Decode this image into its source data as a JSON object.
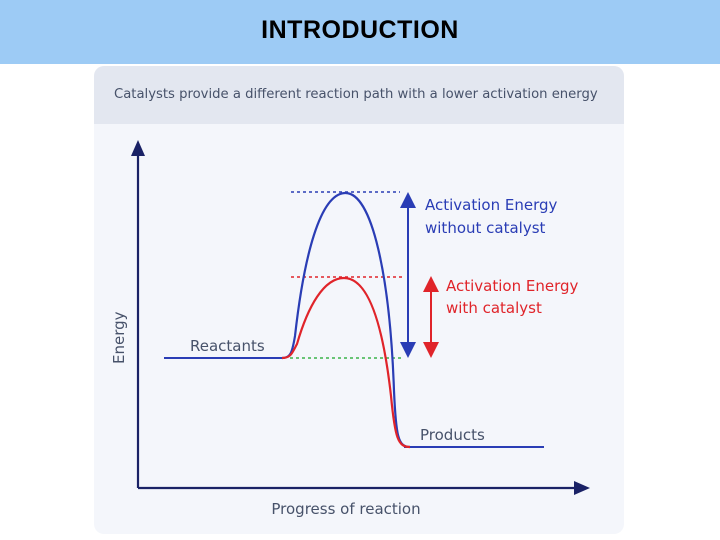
{
  "slide": {
    "title": "INTRODUCTION"
  },
  "figure": {
    "caption": "Catalysts provide a different reaction path with a lower activation energy",
    "y_axis_label": "Energy",
    "x_axis_label": "Progress of reaction",
    "reactants_label": "Reactants",
    "products_label": "Products",
    "uncatalysed": {
      "line1": "Activation Energy",
      "line2": "without catalyst",
      "color": "#2a3db5"
    },
    "catalysed": {
      "line1": "Activation Energy",
      "line2": "with catalyst",
      "color": "#e0242a"
    },
    "reactant_level_color": "#3bb34a",
    "axis_color": "#1a2266",
    "text_color": "#47526a"
  }
}
